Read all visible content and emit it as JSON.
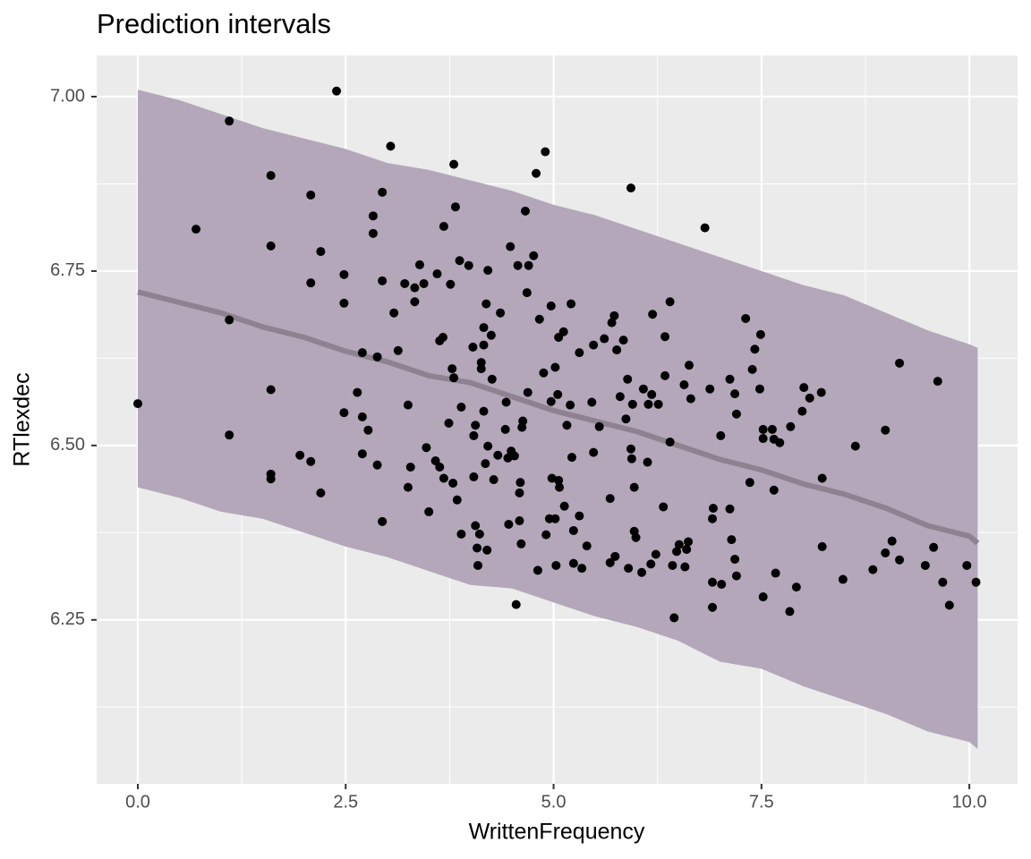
{
  "chart_data": {
    "type": "scatter",
    "title": "Prediction intervals",
    "x_label": "WrittenFrequency",
    "y_label": "RTlexdec",
    "xlim": [
      -0.495,
      10.58
    ],
    "ylim": [
      6.015,
      7.059
    ],
    "xticks": [
      {
        "value": 0,
        "label": "0.0"
      },
      2.5,
      {
        "value": 5,
        "label": "5.0"
      },
      7.5,
      {
        "value": 10,
        "label": "10.0"
      }
    ],
    "yticks": [
      6.25,
      {
        "value": 6.5,
        "label": "6.50"
      },
      6.75,
      {
        "value": 7,
        "label": "7.00"
      }
    ],
    "grid": true,
    "ribbon": {
      "color": "#b4a7ba",
      "x": [
        0,
        0.5,
        1,
        1.5,
        2,
        2.5,
        3,
        3.5,
        4,
        4.5,
        5,
        5.5,
        6,
        6.5,
        7,
        7.5,
        8,
        8.5,
        9,
        9.5,
        10,
        10.1
      ],
      "upper": [
        7.01,
        6.995,
        6.975,
        6.955,
        6.94,
        6.925,
        6.905,
        6.895,
        6.88,
        6.865,
        6.845,
        6.83,
        6.81,
        6.79,
        6.77,
        6.75,
        6.73,
        6.715,
        6.69,
        6.665,
        6.645,
        6.64
      ],
      "lower": [
        6.44,
        6.425,
        6.405,
        6.395,
        6.375,
        6.355,
        6.34,
        6.32,
        6.3,
        6.295,
        6.275,
        6.255,
        6.24,
        6.22,
        6.19,
        6.18,
        6.155,
        6.135,
        6.115,
        6.09,
        6.075,
        6.065
      ]
    },
    "fit": {
      "color": "#8e8290",
      "x": [
        0,
        0.5,
        1,
        1.5,
        2,
        2.5,
        3,
        3.5,
        4,
        4.5,
        5,
        5.5,
        6,
        6.5,
        7,
        7.5,
        8,
        8.5,
        9,
        9.5,
        10,
        10.1
      ],
      "values": [
        6.72,
        6.705,
        6.69,
        6.67,
        6.655,
        6.635,
        6.62,
        6.6,
        6.59,
        6.57,
        6.55,
        6.535,
        6.52,
        6.5,
        6.48,
        6.465,
        6.445,
        6.43,
        6.41,
        6.385,
        6.37,
        6.36
      ]
    },
    "points": {
      "color": "#000000",
      "x": [
        0,
        0.7,
        1.1,
        1.1,
        1.1,
        1.6,
        1.6,
        1.6,
        1.6,
        1.6,
        1.95,
        2.08,
        2.08,
        2.08,
        2.2,
        2.2,
        2.39,
        2.48,
        2.48,
        2.48,
        2.64,
        2.7,
        2.7,
        2.7,
        2.77,
        2.83,
        2.83,
        2.88,
        2.88,
        2.94,
        2.94,
        2.94,
        3.04,
        3.08,
        3.13,
        3.21,
        3.25,
        3.28,
        3.25,
        3.33,
        3.33,
        3.39,
        3.44,
        3.47,
        3.5,
        3.6,
        3.58,
        3.63,
        3.63,
        3.67,
        3.68,
        3.68,
        3.74,
        3.76,
        3.78,
        3.8,
        3.8,
        3.79,
        3.82,
        3.84,
        3.87,
        3.89,
        3.89,
        3.98,
        4.03,
        4.04,
        4.04,
        4.06,
        4.06,
        4.08,
        4.09,
        4.11,
        4.13,
        4.13,
        4.16,
        4.16,
        4.16,
        4.18,
        4.19,
        4.21,
        4.21,
        4.2,
        4.25,
        4.26,
        4.28,
        4.33,
        4.36,
        4.42,
        4.43,
        4.45,
        4.46,
        4.48,
        4.49,
        4.53,
        4.55,
        4.57,
        4.59,
        4.59,
        4.6,
        4.63,
        4.61,
        4.62,
        4.66,
        4.68,
        4.69,
        4.7,
        4.76,
        4.79,
        4.81,
        4.83,
        4.9,
        4.88,
        4.91,
        4.95,
        4.97,
        4.97,
        4.98,
        5.02,
        5.02,
        5.03,
        5.05,
        5.06,
        5.06,
        5.07,
        5.12,
        5.13,
        5.16,
        5.2,
        5.21,
        5.22,
        5.24,
        5.24,
        5.31,
        5.31,
        5.34,
        5.4,
        5.46,
        5.48,
        5.48,
        5.55,
        5.61,
        5.68,
        5.7,
        5.73,
        5.68,
        5.74,
        5.76,
        5.8,
        5.84,
        5.87,
        5.89,
        5.9,
        5.93,
        5.93,
        5.94,
        5.95,
        5.97,
        5.97,
        5.99,
        6.06,
        6.08,
        6.13,
        6.14,
        6.17,
        6.18,
        6.19,
        6.23,
        6.26,
        6.32,
        6.34,
        6.34,
        6.4,
        6.4,
        6.43,
        6.45,
        6.48,
        6.51,
        6.57,
        6.58,
        6.6,
        6.62,
        6.63,
        6.65,
        6.82,
        6.88,
        6.91,
        6.91,
        6.92,
        6.91,
        7.01,
        7.02,
        7.12,
        7.12,
        7.14,
        7.18,
        7.18,
        7.2,
        7.2,
        7.31,
        7.36,
        7.39,
        7.42,
        7.49,
        7.48,
        7.52,
        7.52,
        7.52,
        7.63,
        7.65,
        7.65,
        7.67,
        7.72,
        7.85,
        7.84,
        7.92,
        7.99,
        8.01,
        8.08,
        8.22,
        8.23,
        8.23,
        8.48,
        8.63,
        8.84,
        8.99,
        8.99,
        9.07,
        9.16,
        9.16,
        9.47,
        9.57,
        9.62,
        9.68,
        9.76,
        9.97,
        10.08
      ],
      "y": [
        6.56,
        6.81,
        6.965,
        6.68,
        6.515,
        6.887,
        6.786,
        6.58,
        6.459,
        6.452,
        6.486,
        6.859,
        6.733,
        6.477,
        6.778,
        6.432,
        7.008,
        6.745,
        6.704,
        6.547,
        6.576,
        6.633,
        6.541,
        6.488,
        6.522,
        6.829,
        6.804,
        6.627,
        6.472,
        6.863,
        6.736,
        6.391,
        6.929,
        6.69,
        6.636,
        6.732,
        6.558,
        6.469,
        6.44,
        6.726,
        6.706,
        6.759,
        6.732,
        6.497,
        6.405,
        6.746,
        6.478,
        6.65,
        6.469,
        6.655,
        6.814,
        6.453,
        6.532,
        6.731,
        6.61,
        6.903,
        6.597,
        6.446,
        6.842,
        6.422,
        6.765,
        6.555,
        6.373,
        6.758,
        6.641,
        6.455,
        6.514,
        6.529,
        6.385,
        6.353,
        6.328,
        6.373,
        6.619,
        6.61,
        6.669,
        6.644,
        6.549,
        6.474,
        6.703,
        6.751,
        6.499,
        6.35,
        6.658,
        6.595,
        6.451,
        6.486,
        6.69,
        6.523,
        6.562,
        6.482,
        6.387,
        6.785,
        6.492,
        6.485,
        6.272,
        6.758,
        6.392,
        6.432,
        6.447,
        6.535,
        6.359,
        6.526,
        6.836,
        6.719,
        6.576,
        6.758,
        6.772,
        6.89,
        6.321,
        6.681,
        6.921,
        6.604,
        6.372,
        6.395,
        6.7,
        6.563,
        6.453,
        6.612,
        6.395,
        6.328,
        6.573,
        6.655,
        6.45,
        6.44,
        6.663,
        6.413,
        6.529,
        6.558,
        6.703,
        6.483,
        6.378,
        6.331,
        6.633,
        6.399,
        6.324,
        6.356,
        6.562,
        6.49,
        6.644,
        6.527,
        6.653,
        6.424,
        6.676,
        6.686,
        6.332,
        6.341,
        6.637,
        6.57,
        6.651,
        6.538,
        6.595,
        6.324,
        6.869,
        6.495,
        6.481,
        6.559,
        6.44,
        6.377,
        6.368,
        6.318,
        6.581,
        6.476,
        6.559,
        6.33,
        6.573,
        6.688,
        6.344,
        6.559,
        6.412,
        6.656,
        6.6,
        6.706,
        6.505,
        6.328,
        6.253,
        6.348,
        6.358,
        6.587,
        6.326,
        6.351,
        6.362,
        6.615,
        6.567,
        6.812,
        6.581,
        6.395,
        6.268,
        6.41,
        6.304,
        6.514,
        6.301,
        6.409,
        6.595,
        6.365,
        6.574,
        6.337,
        6.545,
        6.313,
        6.682,
        6.447,
        6.609,
        6.638,
        6.659,
        6.581,
        6.51,
        6.283,
        6.523,
        6.523,
        6.509,
        6.436,
        6.317,
        6.504,
        6.527,
        6.262,
        6.297,
        6.549,
        6.583,
        6.568,
        6.576,
        6.453,
        6.355,
        6.308,
        6.499,
        6.322,
        6.522,
        6.346,
        6.363,
        6.336,
        6.618,
        6.328,
        6.354,
        6.592,
        6.304,
        6.271,
        6.328,
        6.304
      ]
    }
  }
}
